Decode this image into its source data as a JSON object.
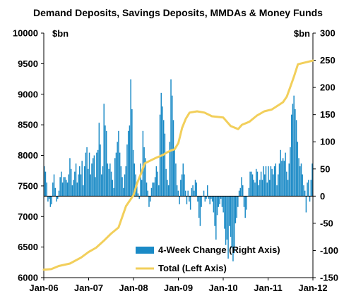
{
  "chart_data": {
    "type": "bar+line",
    "title": "Demand Deposits, Savings Deposits, MMDAs & Money Funds",
    "left_axis": {
      "unit": "$bn",
      "ylim": [
        6000,
        10000
      ],
      "ticks": [
        6000,
        6500,
        7000,
        7500,
        8000,
        8500,
        9000,
        9500,
        10000
      ]
    },
    "right_axis": {
      "unit": "$bn",
      "ylim": [
        -150,
        300
      ],
      "ticks": [
        -150,
        -100,
        -50,
        0,
        50,
        100,
        150,
        200,
        250,
        300
      ]
    },
    "x_axis": {
      "range": [
        "2006-01",
        "2012-01"
      ],
      "tick_labels": [
        "Jan-06",
        "Jan-07",
        "Jan-08",
        "Jan-09",
        "Jan-10",
        "Jan-11",
        "Jan-12"
      ]
    },
    "legend_position": "bottom-right inside",
    "grid": false,
    "colors": {
      "bars": "#1a8ac6",
      "line": "#f2cf5b"
    },
    "series": [
      {
        "name": "4-Week Change (Right Axis)",
        "kind": "bar",
        "axis": "right",
        "x_start": "2006-01",
        "x_end": "2012-01",
        "values": [
          55,
          45,
          25,
          -10,
          -5,
          -20,
          -15,
          25,
          40,
          15,
          -10,
          -5,
          10,
          35,
          45,
          25,
          35,
          35,
          30,
          25,
          40,
          70,
          50,
          20,
          30,
          45,
          60,
          25,
          40,
          55,
          40,
          65,
          20,
          55,
          80,
          90,
          50,
          80,
          40,
          60,
          70,
          75,
          35,
          80,
          85,
          135,
          95,
          40,
          55,
          170,
          130,
          120,
          60,
          50,
          60,
          45,
          30,
          15,
          70,
          80,
          100,
          120,
          80,
          55,
          35,
          15,
          40,
          55,
          95,
          120,
          130,
          215,
          160,
          85,
          60,
          40,
          20,
          5,
          -5,
          60,
          30,
          120,
          90,
          70,
          25,
          10,
          -20,
          -10,
          15,
          25,
          25,
          35,
          55,
          45,
          20,
          150,
          190,
          165,
          140,
          115,
          50,
          30,
          20,
          100,
          215,
          185,
          140,
          85,
          60,
          20,
          10,
          -15,
          30,
          40,
          60,
          40,
          10,
          -15,
          10,
          -10,
          -25,
          15,
          20,
          10,
          30,
          25,
          -10,
          -40,
          -55,
          -20,
          0,
          10,
          -10,
          -5,
          20,
          -5,
          -15,
          -5,
          -10,
          -30,
          -55,
          -80,
          -35,
          -20,
          -15,
          -5,
          -20,
          -30,
          -60,
          -90,
          -80,
          -115,
          -55,
          -75,
          -95,
          -120,
          -105,
          -50,
          -40,
          -20,
          10,
          15,
          35,
          20,
          -20,
          -40,
          -25,
          0,
          15,
          45,
          45,
          40,
          30,
          25,
          50,
          45,
          20,
          30,
          45,
          30,
          55,
          40,
          55,
          25,
          55,
          30,
          55,
          50,
          40,
          55,
          60,
          20,
          40,
          60,
          85,
          65,
          70,
          65,
          80,
          45,
          30,
          60,
          90,
          150,
          170,
          185,
          160,
          140,
          100,
          70,
          55,
          60,
          40,
          20,
          10,
          -30,
          25,
          30,
          -10,
          30,
          60
        ]
      },
      {
        "name": "Total (Left Axis)",
        "kind": "line",
        "axis": "left",
        "x": [
          "2006-01",
          "2006-03",
          "2006-05",
          "2006-08",
          "2006-11",
          "2007-01",
          "2007-03",
          "2007-05",
          "2007-07",
          "2007-09",
          "2007-11",
          "2008-01",
          "2008-02",
          "2008-03",
          "2008-04",
          "2008-05",
          "2008-07",
          "2008-09",
          "2008-10",
          "2008-11",
          "2008-12",
          "2009-01",
          "2009-02",
          "2009-03",
          "2009-04",
          "2009-06",
          "2009-08",
          "2009-10",
          "2010-01",
          "2010-03",
          "2010-05",
          "2010-06",
          "2010-08",
          "2010-10",
          "2010-12",
          "2011-02",
          "2011-04",
          "2011-05",
          "2011-06",
          "2011-07",
          "2011-08",
          "2011-09",
          "2011-11",
          "2012-01"
        ],
        "values": [
          6130,
          6140,
          6190,
          6230,
          6330,
          6420,
          6490,
          6600,
          6720,
          6820,
          7170,
          7350,
          7550,
          7700,
          7870,
          7900,
          7960,
          8010,
          8050,
          8080,
          8100,
          8200,
          8450,
          8600,
          8700,
          8720,
          8700,
          8640,
          8620,
          8480,
          8430,
          8500,
          8550,
          8650,
          8720,
          8750,
          8830,
          8870,
          8960,
          9130,
          9300,
          9490,
          9520,
          9550
        ]
      }
    ]
  }
}
